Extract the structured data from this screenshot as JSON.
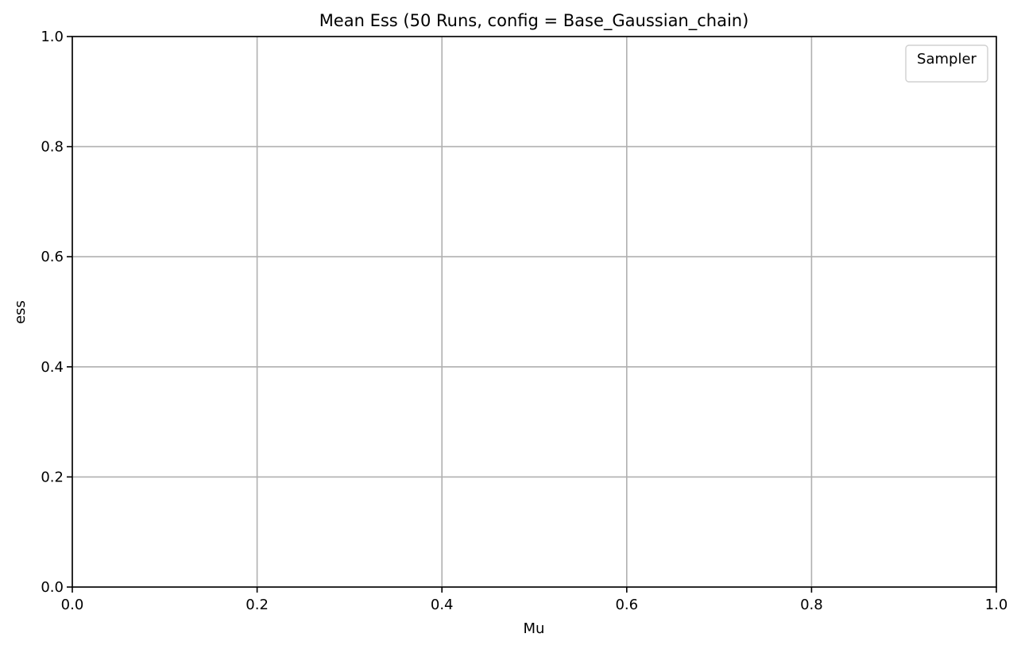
{
  "chart_data": {
    "type": "line",
    "title": "Mean Ess (50 Runs, config = Base_Gaussian_chain)",
    "xlabel": "Mu",
    "ylabel": "ess",
    "xlim": [
      0.0,
      1.0
    ],
    "ylim": [
      0.0,
      1.0
    ],
    "x_ticks": [
      "0.0",
      "0.2",
      "0.4",
      "0.6",
      "0.8",
      "1.0"
    ],
    "y_ticks": [
      "0.0",
      "0.2",
      "0.4",
      "0.6",
      "0.8",
      "1.0"
    ],
    "grid": true,
    "legend": {
      "title": "Sampler",
      "placement": "top-right",
      "entries": []
    },
    "series": []
  }
}
